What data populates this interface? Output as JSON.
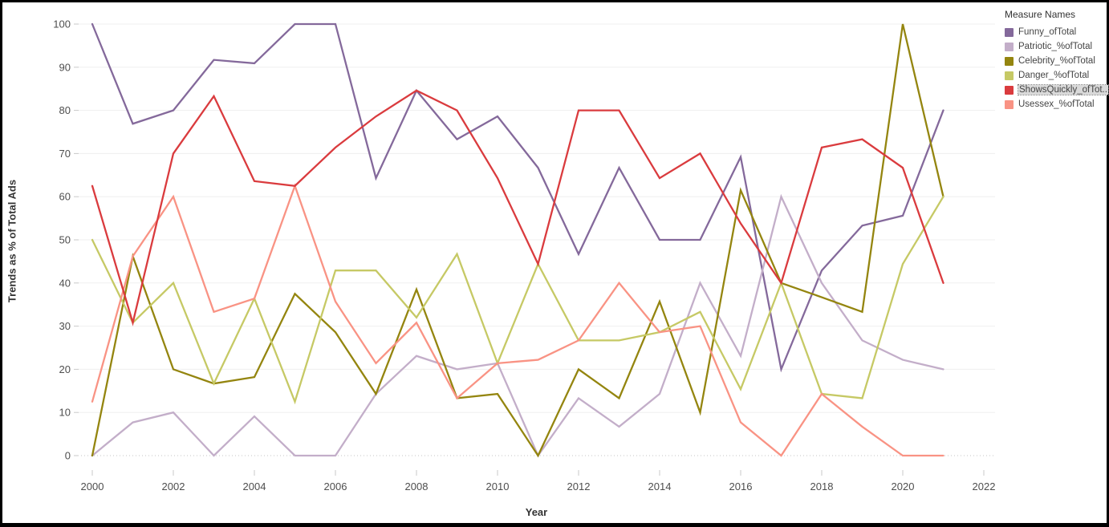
{
  "chart": {
    "y_axis_title": "Trends as % of Total Ads",
    "x_axis_title": "Year",
    "y_ticks": [
      0,
      10,
      20,
      30,
      40,
      50,
      60,
      70,
      80,
      90,
      100
    ],
    "x_ticks": [
      2000,
      2002,
      2004,
      2006,
      2008,
      2010,
      2012,
      2014,
      2016,
      2018,
      2020,
      2022
    ]
  },
  "legend": {
    "title": "Measure Names",
    "items": [
      {
        "label": "Funny_ofTotal",
        "color": "#84699b",
        "highlighted": false
      },
      {
        "label": "Patriotic_%ofTotal",
        "color": "#c3aec9",
        "highlighted": false
      },
      {
        "label": "Celebrity_%ofTotal",
        "color": "#94850f",
        "highlighted": false
      },
      {
        "label": "Danger_%ofTotal",
        "color": "#c6c965",
        "highlighted": false
      },
      {
        "label": "ShowsQuickly_ofTot..",
        "color": "#da3b3e",
        "highlighted": true
      },
      {
        "label": "Usessex_%ofTotal",
        "color": "#f99384",
        "highlighted": false
      }
    ]
  },
  "chart_data": {
    "type": "line",
    "title": "",
    "xlabel": "Year",
    "ylabel": "Trends as % of Total Ads",
    "ylim": [
      0,
      100
    ],
    "xlim": [
      1999.6,
      2022.3
    ],
    "grid": true,
    "legend_position": "right",
    "x": [
      2000,
      2001,
      2002,
      2003,
      2004,
      2005,
      2006,
      2007,
      2008,
      2009,
      2010,
      2011,
      2012,
      2013,
      2014,
      2015,
      2016,
      2017,
      2018,
      2019,
      2020,
      2021
    ],
    "series": [
      {
        "name": "Funny_ofTotal",
        "color": "#84699b",
        "values": [
          100,
          76.9,
          80,
          91.7,
          90.9,
          100,
          100,
          64.3,
          84.6,
          73.3,
          78.6,
          66.7,
          46.7,
          66.7,
          50,
          50,
          69.2,
          20,
          42.9,
          53.3,
          55.6,
          80
        ]
      },
      {
        "name": "Patriotic_%ofTotal",
        "color": "#c3aec9",
        "values": [
          0,
          7.7,
          10,
          0,
          9.1,
          0,
          0,
          14.3,
          23.1,
          20,
          21.4,
          0,
          13.3,
          6.7,
          14.3,
          40,
          23.1,
          60,
          40,
          26.7,
          22.2,
          20
        ]
      },
      {
        "name": "Celebrity_%ofTotal",
        "color": "#94850f",
        "values": [
          0,
          46.2,
          20,
          16.7,
          18.2,
          37.5,
          28.6,
          14.3,
          38.5,
          13.3,
          14.3,
          0,
          20,
          13.3,
          35.7,
          10,
          61.5,
          40,
          36.7,
          33.3,
          100,
          60
        ]
      },
      {
        "name": "Danger_%ofTotal",
        "color": "#c6c965",
        "values": [
          50,
          30.8,
          40,
          16.7,
          36.4,
          12.5,
          42.9,
          42.9,
          32,
          46.7,
          21.4,
          44.4,
          26.7,
          26.7,
          28.6,
          33.3,
          15.4,
          40,
          14.3,
          13.3,
          44.4,
          60
        ]
      },
      {
        "name": "ShowsQuickly_ofTot..",
        "color": "#da3b3e",
        "values": [
          62.5,
          30.8,
          70,
          83.3,
          63.6,
          62.5,
          71.4,
          78.6,
          84.6,
          80,
          64.3,
          44.4,
          80,
          80,
          64.3,
          70,
          53.8,
          40,
          71.4,
          73.3,
          66.7,
          40
        ]
      },
      {
        "name": "Usessex_%ofTotal",
        "color": "#f99384",
        "values": [
          12.5,
          46.2,
          60,
          33.3,
          36.4,
          62.5,
          35.7,
          21.4,
          30.8,
          13.3,
          21.4,
          22.2,
          26.7,
          40,
          28.6,
          30,
          7.7,
          0,
          14.3,
          6.7,
          0,
          0
        ]
      }
    ]
  }
}
